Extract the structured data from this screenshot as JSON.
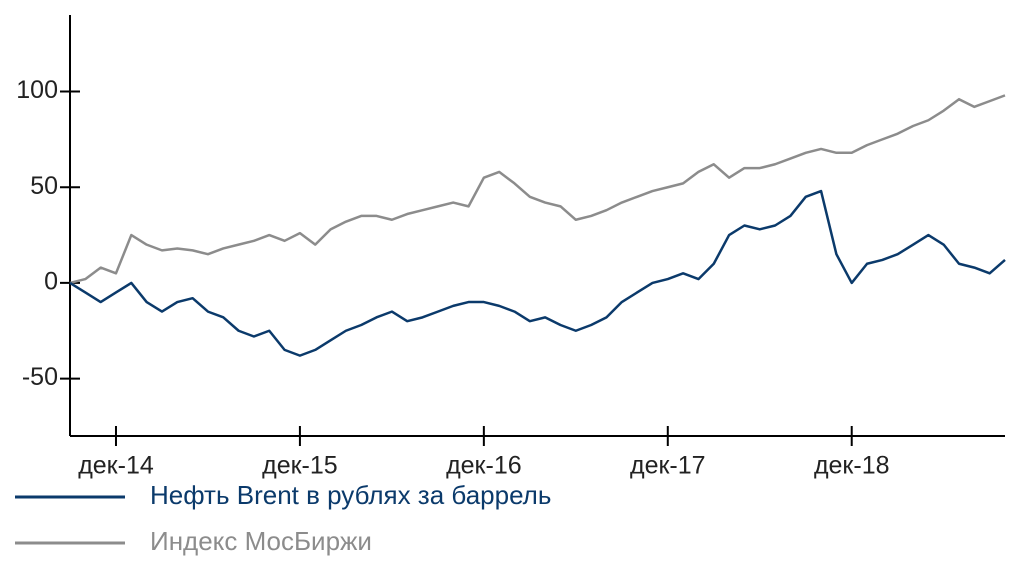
{
  "chart_data": {
    "type": "line",
    "categories": [
      null,
      null,
      null,
      "дек-14",
      null,
      null,
      null,
      null,
      null,
      null,
      null,
      null,
      null,
      null,
      null,
      "дек-15",
      null,
      null,
      null,
      null,
      null,
      null,
      null,
      null,
      null,
      null,
      null,
      "дек-16",
      null,
      null,
      null,
      null,
      null,
      null,
      null,
      null,
      null,
      null,
      null,
      "дек-17",
      null,
      null,
      null,
      null,
      null,
      null,
      null,
      null,
      null,
      null,
      null,
      "дек-18",
      null,
      null,
      null,
      null,
      null,
      null,
      null,
      null,
      null,
      null
    ],
    "series": [
      {
        "name": "Нефть Brent в рублях за баррель",
        "color": "#0b3a6b",
        "values": [
          0,
          -5,
          -10,
          -5,
          0,
          -10,
          -15,
          -10,
          -8,
          -15,
          -18,
          -25,
          -28,
          -25,
          -35,
          -38,
          -35,
          -30,
          -25,
          -22,
          -18,
          -15,
          -20,
          -18,
          -15,
          -12,
          -10,
          -10,
          -12,
          -15,
          -20,
          -18,
          -22,
          -25,
          -22,
          -18,
          -10,
          -5,
          0,
          2,
          5,
          2,
          10,
          25,
          30,
          28,
          30,
          35,
          45,
          48,
          15,
          0,
          10,
          12,
          15,
          20,
          25,
          20,
          10,
          8,
          5,
          12
        ]
      },
      {
        "name": "Индекс МосБиржи",
        "color": "#8c8c8c",
        "values": [
          0,
          2,
          8,
          5,
          25,
          20,
          17,
          18,
          17,
          15,
          18,
          20,
          22,
          25,
          22,
          26,
          20,
          28,
          32,
          35,
          35,
          33,
          36,
          38,
          40,
          42,
          40,
          55,
          58,
          52,
          45,
          42,
          40,
          33,
          35,
          38,
          42,
          45,
          48,
          50,
          52,
          58,
          62,
          55,
          60,
          60,
          62,
          65,
          68,
          70,
          68,
          68,
          72,
          75,
          78,
          82,
          85,
          90,
          96,
          92,
          95,
          98
        ]
      }
    ],
    "ylim": [
      -80,
      140
    ],
    "yticks": [
      -50,
      0,
      50,
      100
    ]
  }
}
